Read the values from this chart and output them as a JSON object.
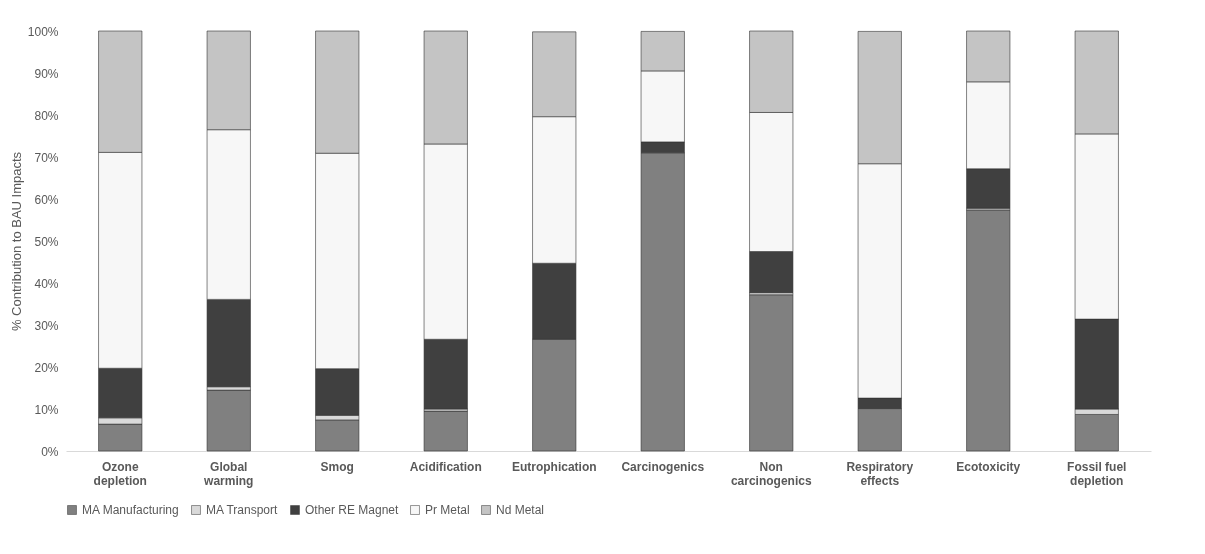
{
  "chart_data": {
    "type": "bar",
    "stacked": true,
    "ylabel": "% Contribution to BAU Impacts",
    "categories": [
      "Ozone depletion",
      "Global warming",
      "Smog",
      "Acidification",
      "Eutrophication",
      "Carcinogenics",
      "Non carcinogenics",
      "Respiratory effects",
      "Ecotoxicity",
      "Fossil fuel depletion"
    ],
    "series": [
      {
        "name": "MA Manufacturing",
        "color": "#808080",
        "values": [
          6.4,
          14.5,
          7.4,
          9.5,
          26.6,
          71.0,
          37.2,
          10.1,
          57.4,
          8.7
        ]
      },
      {
        "name": "MA Transport",
        "color": "#d9d9d9",
        "values": [
          1.5,
          0.8,
          1.1,
          0.5,
          null,
          null,
          0.5,
          null,
          0.4,
          1.3
        ]
      },
      {
        "name": "Other RE Magnet",
        "color": "#404040",
        "values": [
          11.8,
          20.8,
          11.1,
          16.6,
          18.1,
          2.6,
          9.8,
          2.5,
          9.4,
          21.4
        ]
      },
      {
        "name": "Pr Metal",
        "color": "#f7f7f7",
        "values": [
          51.4,
          40.4,
          51.3,
          46.5,
          34.9,
          16.9,
          33.1,
          55.8,
          20.7,
          44.1
        ]
      },
      {
        "name": "Nd Metal",
        "color": "#c4c4c4",
        "values": [
          28.9,
          23.5,
          29.1,
          26.9,
          20.2,
          9.4,
          19.4,
          31.5,
          12.1,
          24.5
        ]
      }
    ],
    "ylim": [
      0,
      100
    ],
    "yticks": [
      {
        "value": 0,
        "label": "0%"
      },
      {
        "value": 10,
        "label": "10%"
      },
      {
        "value": 20,
        "label": "20%"
      },
      {
        "value": 30,
        "label": "30%"
      },
      {
        "value": 40,
        "label": "40%"
      },
      {
        "value": 50,
        "label": "50%"
      },
      {
        "value": 60,
        "label": "60%"
      },
      {
        "value": 70,
        "label": "70%"
      },
      {
        "value": 80,
        "label": "80%"
      },
      {
        "value": 90,
        "label": "90%"
      },
      {
        "value": 100,
        "label": "100%"
      }
    ],
    "grid": false,
    "legend": "bottom"
  }
}
